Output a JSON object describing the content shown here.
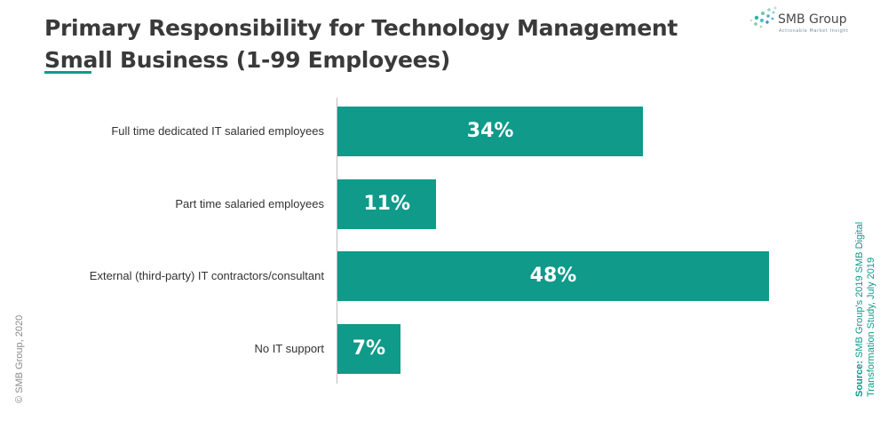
{
  "title_line1": "Primary Responsibility for Technology Management",
  "title_line2": "Small Business (1-99 Employees)",
  "logo": {
    "name": "SMB Group",
    "tagline": "Actionable Market Insight"
  },
  "copyright": "© SMB Group, 2020",
  "source": {
    "prefix": "Source:",
    "text": "SMB Group's 2019 SMB Digital Transformation Study, July 2019"
  },
  "colors": {
    "bar": "#0f9a8a",
    "title": "#3a3a3a",
    "accent": "#0f9a8a"
  },
  "chart_data": {
    "type": "bar",
    "orientation": "horizontal",
    "title": "Primary Responsibility for Technology Management",
    "subtitle": "Small Business (1-99 Employees)",
    "categories": [
      "Full time dedicated IT salaried employees",
      "Part time salaried employees",
      "External (third-party) IT contractors/consultant",
      "No IT support"
    ],
    "values": [
      34,
      11,
      48,
      7
    ],
    "value_labels": [
      "34%",
      "11%",
      "48%",
      "7%"
    ],
    "unit": "%",
    "xlim": [
      0,
      48
    ],
    "grid": false,
    "legend": "none"
  }
}
